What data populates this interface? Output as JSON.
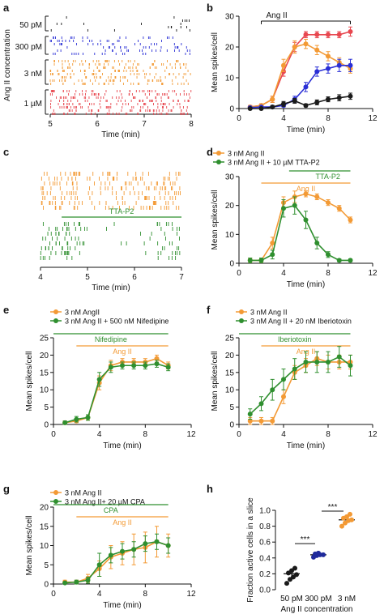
{
  "figure": {
    "panel_labels": [
      "a",
      "b",
      "c",
      "d",
      "e",
      "f",
      "g",
      "h"
    ]
  },
  "colors": {
    "black": "#1a1a1a",
    "blue": "#2a2fd6",
    "orange": "#f39a35",
    "red": "#e8474f",
    "green": "#2f8f2f",
    "navy": "#1f2a9c"
  },
  "chart_data": [
    {
      "id": "a",
      "type": "raster",
      "ylabel": "Ang II concentration",
      "xlabel": "Time (min)",
      "xticks": [
        5,
        6,
        7,
        8
      ],
      "xlim": [
        5,
        8
      ],
      "groups": [
        {
          "name": "50 pM",
          "color": "black",
          "rows": 5
        },
        {
          "name": "300 pM",
          "color": "blue",
          "rows": 6
        },
        {
          "name": "3 nM",
          "color": "orange",
          "rows": 8
        },
        {
          "name": "1 µM",
          "color": "red",
          "rows": 8
        }
      ]
    },
    {
      "id": "b",
      "type": "line",
      "xlabel": "Time (min)",
      "ylabel": "Mean spikes/cell",
      "xlim": [
        0,
        12
      ],
      "ylim": [
        0,
        30
      ],
      "xticks": [
        0,
        4,
        8,
        12
      ],
      "yticks": [
        0,
        10,
        20,
        30
      ],
      "annotation": {
        "text": "Ang II",
        "x0": 2,
        "x1": 10
      },
      "series": [
        {
          "color": "red",
          "x": [
            1,
            2,
            3,
            4,
            5,
            6,
            7,
            8,
            9,
            10
          ],
          "y": [
            0.5,
            1,
            3,
            12,
            20,
            24,
            24,
            24,
            24,
            25
          ],
          "err": [
            0.5,
            0.5,
            1,
            1.5,
            1.5,
            1,
            1,
            1,
            1,
            1.5
          ]
        },
        {
          "color": "orange",
          "x": [
            1,
            2,
            3,
            4,
            5,
            6,
            7,
            8,
            9,
            10
          ],
          "y": [
            0.5,
            1,
            3,
            14,
            20,
            21,
            19,
            17,
            15,
            13
          ],
          "err": [
            0.5,
            0.5,
            1,
            2,
            2,
            1.5,
            1.5,
            1.5,
            1.5,
            1.5
          ]
        },
        {
          "color": "blue",
          "x": [
            1,
            2,
            3,
            4,
            5,
            6,
            7,
            8,
            9,
            10
          ],
          "y": [
            0.3,
            0.5,
            0.5,
            1,
            3,
            7,
            12,
            13,
            14,
            14
          ],
          "err": [
            0.3,
            0.3,
            0.3,
            0.5,
            1,
            1.5,
            1.5,
            1.5,
            2,
            2
          ]
        },
        {
          "color": "black",
          "x": [
            1,
            2,
            3,
            4,
            5,
            6,
            7,
            8,
            9,
            10
          ],
          "y": [
            0,
            0,
            0.5,
            1.5,
            2.5,
            1,
            2,
            3,
            3.5,
            4
          ],
          "err": [
            0.3,
            0.3,
            0.5,
            0.8,
            0.8,
            0.5,
            0.8,
            0.8,
            1,
            1
          ]
        }
      ]
    },
    {
      "id": "c",
      "type": "raster",
      "xlabel": "Time (min)",
      "xticks": [
        4,
        5,
        6,
        7
      ],
      "xlim": [
        4,
        7
      ],
      "annotation": {
        "text": "TTA-P2",
        "x0": 4.45,
        "x1": 7,
        "color": "green"
      },
      "groups": [
        {
          "name": "",
          "color": "orange",
          "rows": 8
        },
        {
          "name": "",
          "color": "green",
          "rows": 8
        }
      ]
    },
    {
      "id": "d",
      "type": "line",
      "xlabel": "Time (min)",
      "ylabel": "Mean spikes/cell",
      "xlim": [
        0,
        12
      ],
      "ylim": [
        0,
        30
      ],
      "xticks": [
        0,
        4,
        8,
        12
      ],
      "yticks": [
        0,
        10,
        20,
        30
      ],
      "legend": [
        "3 nM Ang II",
        "3 nM Ang II + 10 µM TTA-P2"
      ],
      "bars": [
        {
          "text": "TTA-P2",
          "x0": 4.5,
          "x1": 10,
          "color": "green"
        },
        {
          "text": "Ang II",
          "x0": 2,
          "x1": 10,
          "color": "orange"
        }
      ],
      "series": [
        {
          "name": "3 nM Ang II",
          "color": "orange",
          "x": [
            1,
            2,
            3,
            4,
            5,
            6,
            7,
            8,
            9,
            10
          ],
          "y": [
            1,
            1,
            7,
            21,
            23,
            24,
            23,
            21,
            19,
            15
          ],
          "err": [
            0.8,
            0.8,
            2,
            2,
            2,
            1,
            1,
            1,
            1,
            1
          ]
        },
        {
          "name": "3 nM Ang II + 10 µM TTA-P2",
          "color": "green",
          "x": [
            1,
            2,
            3,
            4,
            5,
            6,
            7,
            8,
            9,
            10
          ],
          "y": [
            1,
            1,
            3,
            19,
            20,
            15,
            7,
            3,
            1,
            1
          ],
          "err": [
            0.8,
            0.8,
            1.5,
            3,
            3,
            3,
            2,
            1,
            0.5,
            0.5
          ]
        }
      ]
    },
    {
      "id": "e",
      "type": "line",
      "xlabel": "Time (min)",
      "ylabel": "Mean spikes/cell",
      "xlim": [
        0,
        12
      ],
      "ylim": [
        0,
        25
      ],
      "xticks": [
        0,
        4,
        8,
        12
      ],
      "yticks": [
        0,
        5,
        10,
        15,
        20,
        25
      ],
      "legend": [
        "3 nM AngII",
        "3 nM Ang II + 500 nM Nifedipine"
      ],
      "bars": [
        {
          "text": "Nifedipine",
          "x0": 0,
          "x1": 10,
          "color": "green"
        },
        {
          "text": "Ang II",
          "x0": 2,
          "x1": 10,
          "color": "orange"
        }
      ],
      "series": [
        {
          "name": "3 nM AngII",
          "color": "orange",
          "x": [
            1,
            2,
            3,
            4,
            5,
            6,
            7,
            8,
            9,
            10
          ],
          "y": [
            0.5,
            1,
            2,
            12,
            17,
            18,
            18,
            18,
            19,
            17
          ],
          "err": [
            0.5,
            0.5,
            0.8,
            2,
            1.5,
            1,
            1,
            1,
            1,
            1
          ]
        },
        {
          "name": "3 nM Ang II + 500 nM Nifedipine",
          "color": "green",
          "x": [
            1,
            2,
            3,
            4,
            5,
            6,
            7,
            8,
            9,
            10
          ],
          "y": [
            0.5,
            1.5,
            2,
            13,
            16.5,
            17,
            17,
            17,
            17.5,
            16.5
          ],
          "err": [
            0.5,
            0.8,
            0.8,
            2,
            1.5,
            1,
            1,
            1,
            1,
            1
          ]
        }
      ]
    },
    {
      "id": "f",
      "type": "line",
      "xlabel": "Time (min)",
      "ylabel": "Mean spikes/cell",
      "xlim": [
        0,
        12
      ],
      "ylim": [
        0,
        25
      ],
      "xticks": [
        0,
        4,
        8,
        12
      ],
      "yticks": [
        0,
        5,
        10,
        15,
        20,
        25
      ],
      "legend": [
        "3 nM Ang II",
        "3 nM Ang II + 20 nM Iberiotoxin"
      ],
      "bars": [
        {
          "text": "Iberiotoxin",
          "x0": 0,
          "x1": 10,
          "color": "green"
        },
        {
          "text": "Ang II",
          "x0": 2,
          "x1": 10,
          "color": "orange"
        }
      ],
      "series": [
        {
          "name": "3 nM Ang II",
          "color": "orange",
          "x": [
            1,
            2,
            3,
            4,
            5,
            6,
            7,
            8,
            9,
            10
          ],
          "y": [
            1,
            1,
            1,
            8,
            15,
            17,
            19,
            18,
            18,
            18
          ],
          "err": [
            1,
            1,
            1,
            2,
            2,
            2,
            2,
            2,
            2,
            2
          ]
        },
        {
          "name": "3 nM Ang II + 20 nM Iberiotoxin",
          "color": "green",
          "x": [
            1,
            2,
            3,
            4,
            5,
            6,
            7,
            8,
            9,
            10
          ],
          "y": [
            3,
            6,
            10,
            13,
            16,
            18,
            18,
            18,
            19.5,
            17
          ],
          "err": [
            1.5,
            2,
            3,
            3,
            3,
            3,
            3,
            3,
            3,
            3
          ]
        }
      ]
    },
    {
      "id": "g",
      "type": "line",
      "xlabel": "Time (min)",
      "ylabel": "Mean spikes/cell",
      "xlim": [
        0,
        12
      ],
      "ylim": [
        0,
        20
      ],
      "xticks": [
        0,
        4,
        8,
        12
      ],
      "yticks": [
        0,
        5,
        10,
        15,
        20
      ],
      "legend": [
        "3 nM Ang II",
        "3 nM Ang II+ 20 µM CPA"
      ],
      "bars": [
        {
          "text": "CPA",
          "x0": 0,
          "x1": 10,
          "color": "green"
        },
        {
          "text": "Ang II",
          "x0": 2,
          "x1": 10,
          "color": "orange"
        }
      ],
      "series": [
        {
          "name": "3 nM Ang II",
          "color": "orange",
          "x": [
            1,
            2,
            3,
            4,
            5,
            6,
            7,
            8,
            9,
            10
          ],
          "y": [
            0.5,
            0.5,
            1.5,
            4,
            7,
            8,
            9,
            9.5,
            11,
            10
          ],
          "err": [
            0.5,
            0.5,
            1,
            2,
            3,
            3,
            4,
            4,
            4,
            3
          ]
        },
        {
          "name": "3 nM Ang II+ 20 µM CPA",
          "color": "green",
          "x": [
            1,
            2,
            3,
            4,
            5,
            6,
            7,
            8,
            9,
            10
          ],
          "y": [
            0.3,
            0.5,
            1,
            5,
            7.5,
            8.5,
            9,
            10.5,
            11,
            10
          ],
          "err": [
            0.3,
            0.5,
            0.8,
            3,
            2,
            2,
            2,
            2,
            2,
            2
          ]
        }
      ]
    },
    {
      "id": "h",
      "type": "scatter",
      "xlabel": "Ang II concentration",
      "ylabel": "Fraction active cells in a slice",
      "categories": [
        "50 pM",
        "300 pM",
        "3 nM"
      ],
      "ylim": [
        0,
        1.0
      ],
      "yticks": [
        "0.0",
        "0.2",
        "0.4",
        "0.6",
        "0.8",
        "1.0"
      ],
      "groups": [
        {
          "name": "50 pM",
          "color": "black",
          "mean": 0.2,
          "sem": 0.03,
          "values": [
            0.08,
            0.13,
            0.16,
            0.19,
            0.21,
            0.24,
            0.27
          ]
        },
        {
          "name": "300 pM",
          "color": "navy",
          "mean": 0.44,
          "sem": 0.015,
          "values": [
            0.41,
            0.43,
            0.44,
            0.44,
            0.45,
            0.46
          ]
        },
        {
          "name": "3 nM",
          "color": "orange",
          "mean": 0.88,
          "sem": 0.02,
          "values": [
            0.8,
            0.84,
            0.87,
            0.88,
            0.9,
            0.92,
            0.95
          ]
        }
      ],
      "significance": [
        "***",
        "***"
      ]
    }
  ]
}
